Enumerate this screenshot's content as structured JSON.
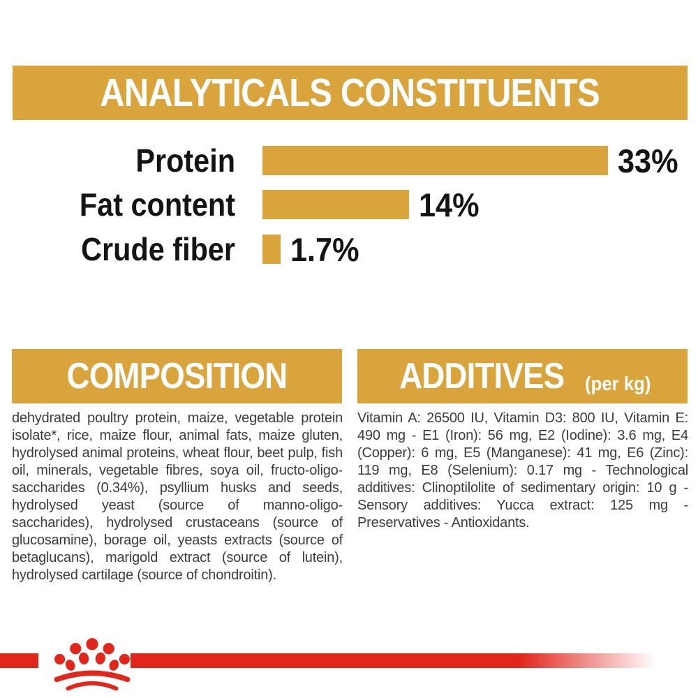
{
  "header": {
    "title": "ANALYTICALS CONSTITUENTS"
  },
  "chart_data": {
    "type": "bar",
    "orientation": "horizontal",
    "categories": [
      "Protein",
      "Fat content",
      "Crude fiber"
    ],
    "values": [
      33,
      14,
      1.7
    ],
    "value_labels": [
      "33%",
      "14%",
      "1.7%"
    ],
    "xlim": [
      0,
      33
    ],
    "grid": false,
    "bar_color": "#D9A43B",
    "label_color": "#141414",
    "title": "ANALYTICALS CONSTITUENTS"
  },
  "composition": {
    "heading": "COMPOSITION",
    "body": "dehydrated poultry protein, maize, vegetable protein isolate*, rice, maize flour, animal fats, maize gluten, hydrolysed animal proteins, wheat flour, beet pulp, fish oil, minerals, vegetable fibres, soya oil, fructo-oligo-saccharides (0.34%), psyllium husks and seeds, hydrolysed yeast (source of manno-oligo-saccharides), hydrolysed crustaceans (source of glucosamine), borage oil, yeasts extracts (source of betaglucans), marigold extract (source of lutein), hydrolysed cartilage (source of chondroitin)."
  },
  "additives": {
    "heading": "ADDITIVES",
    "unit_label": "(per kg)",
    "body": "Vitamin A: 26500 IU, Vitamin D3: 800 IU, Vitamin E: 490 mg - E1 (Iron): 56 mg, E2 (Iodine): 3.6 mg, E4 (Copper): 6 mg, E5 (Manganese): 41 mg, E6 (Zinc): 119 mg, E8 (Selenium): 0.17 mg - Technological additives: Clinoptilolite of sedimentary origin: 10 g - Sensory additives: Yucca extract: 125 mg - Preservatives - Antioxidants."
  },
  "footer": {
    "logo": "royal-canin-crown"
  },
  "colors": {
    "gold": "#D9A43B",
    "red": "#E1261C",
    "body_text": "#3C3C3C",
    "chart_text": "#141414",
    "background": "#FFFFFF"
  }
}
